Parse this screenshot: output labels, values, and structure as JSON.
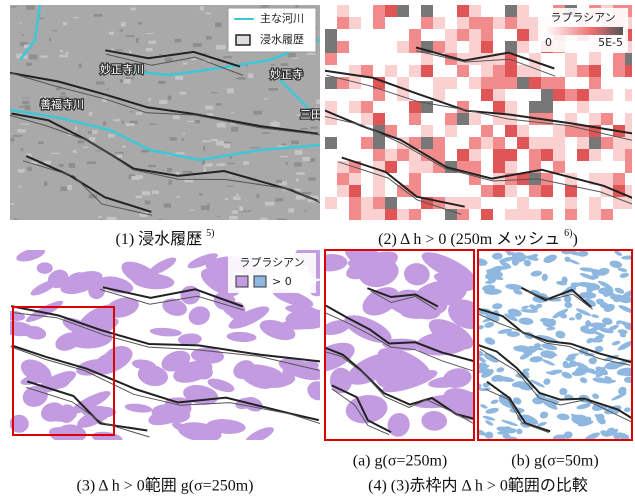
{
  "panel1": {
    "legend": [
      "主な河川",
      "浸水履歴"
    ],
    "map_labels": [
      "妙正寺川",
      "妙正寺",
      "善福寺川",
      "三田"
    ],
    "caption": {
      "text": "(1) 浸水履歴 ",
      "sup": "5)"
    }
  },
  "panel2": {
    "legend": {
      "title": "ラプラシアン",
      "min": "0",
      "max": "5E-5"
    },
    "caption": {
      "text": "(2) Δ h > 0  (250m メッシュ ",
      "sup": "6)",
      "tail": ")"
    }
  },
  "panel3": {
    "legend": {
      "title": "ラプラシアン",
      "label": "> 0"
    },
    "caption": "(3) Δ h > 0範囲 g(σ=250m)"
  },
  "panel4": {
    "caption_a": "(a) g(σ=250m)",
    "caption_b": "(b) g(σ=50m)",
    "caption": "(4) (3)赤枠内 Δ h > 0範囲の比較"
  }
}
